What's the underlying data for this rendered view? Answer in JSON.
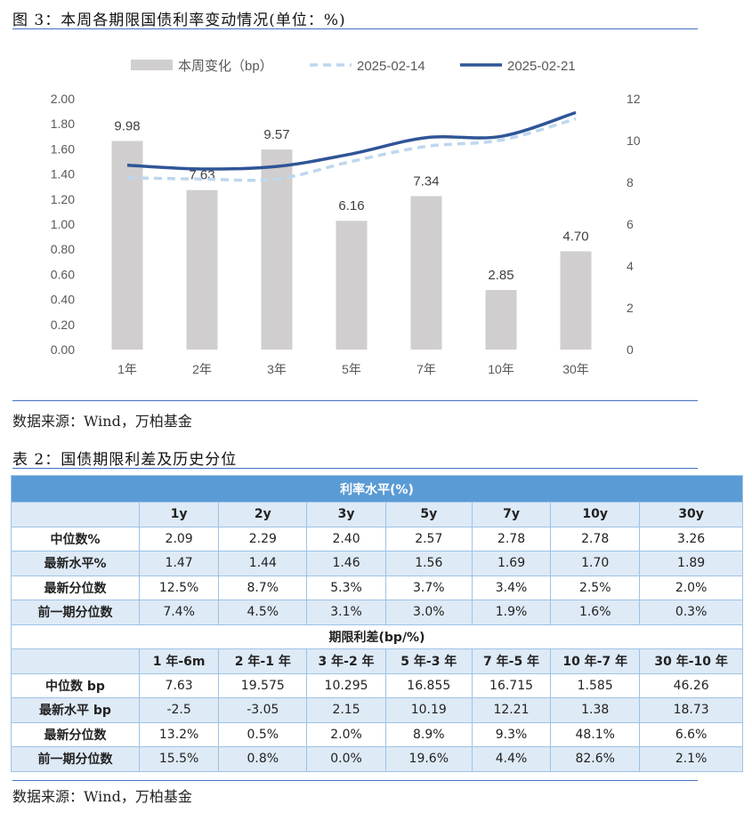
{
  "figure_caption": "图 3：本周各期限国债利率变动情况(单位：%)",
  "source1": "数据来源：Wind，万柏基金",
  "table_caption": "表 2：国债期限利差及历史分位",
  "source2": "数据来源：Wind，万柏基金",
  "colors": {
    "bar": "#d0cece",
    "line_prev": "#bdd7ee",
    "line_curr": "#2f5597",
    "table_head": "#5b9bd5",
    "table_alt": "#deeaf6"
  },
  "chart_data": {
    "type": "bar+line",
    "categories": [
      "1年",
      "2年",
      "3年",
      "5年",
      "7年",
      "10年",
      "30年"
    ],
    "legend": [
      "本周变化（bp）",
      "2025-02-14",
      "2025-02-21"
    ],
    "legend_position": "top",
    "left_axis": {
      "ticks": [
        "0.00",
        "0.20",
        "0.40",
        "0.60",
        "0.80",
        "1.00",
        "1.20",
        "1.40",
        "1.60",
        "1.80",
        "2.00"
      ],
      "range": [
        0,
        2
      ]
    },
    "right_axis": {
      "ticks": [
        "0",
        "2",
        "4",
        "6",
        "8",
        "10",
        "12"
      ],
      "range": [
        0,
        12
      ]
    },
    "series": [
      {
        "name": "本周变化（bp）",
        "type": "bar",
        "axis": "right",
        "values": [
          9.98,
          7.63,
          9.57,
          6.16,
          7.34,
          2.85,
          4.7
        ],
        "labels": [
          "9.98",
          "7.63",
          "9.57",
          "6.16",
          "7.34",
          "2.85",
          "4.70"
        ]
      },
      {
        "name": "2025-02-14",
        "type": "line",
        "style": "dashed",
        "axis": "left",
        "values": [
          1.37,
          1.36,
          1.36,
          1.5,
          1.62,
          1.67,
          1.84
        ]
      },
      {
        "name": "2025-02-21",
        "type": "line",
        "axis": "left",
        "values": [
          1.47,
          1.44,
          1.46,
          1.56,
          1.69,
          1.7,
          1.89
        ]
      }
    ]
  },
  "table": {
    "section1": "利率水平(%)",
    "head1": [
      "",
      "1y",
      "2y",
      "3y",
      "5y",
      "7y",
      "10y",
      "30y"
    ],
    "rows1": [
      [
        "中位数%",
        "2.09",
        "2.29",
        "2.40",
        "2.57",
        "2.78",
        "2.78",
        "3.26"
      ],
      [
        "最新水平%",
        "1.47",
        "1.44",
        "1.46",
        "1.56",
        "1.69",
        "1.70",
        "1.89"
      ],
      [
        "最新分位数",
        "12.5%",
        "8.7%",
        "5.3%",
        "3.7%",
        "3.4%",
        "2.5%",
        "2.0%"
      ],
      [
        "前一期分位数",
        "7.4%",
        "4.5%",
        "3.1%",
        "3.0%",
        "1.9%",
        "1.6%",
        "0.3%"
      ]
    ],
    "section2": "期限利差(bp/%)",
    "head2": [
      "",
      "1 年-6m",
      "2 年-1 年",
      "3 年-2 年",
      "5 年-3 年",
      "7 年-5 年",
      "10 年-7 年",
      "30 年-10 年"
    ],
    "rows2": [
      [
        "中位数 bp",
        "7.63",
        "19.575",
        "10.295",
        "16.855",
        "16.715",
        "1.585",
        "46.26"
      ],
      [
        "最新水平 bp",
        "-2.5",
        "-3.05",
        "2.15",
        "10.19",
        "12.21",
        "1.38",
        "18.73"
      ],
      [
        "最新分位数",
        "13.2%",
        "0.5%",
        "2.0%",
        "8.9%",
        "9.3%",
        "48.1%",
        "6.6%"
      ],
      [
        "前一期分位数",
        "15.5%",
        "0.8%",
        "0.0%",
        "19.6%",
        "4.4%",
        "82.6%",
        "2.1%"
      ]
    ]
  }
}
